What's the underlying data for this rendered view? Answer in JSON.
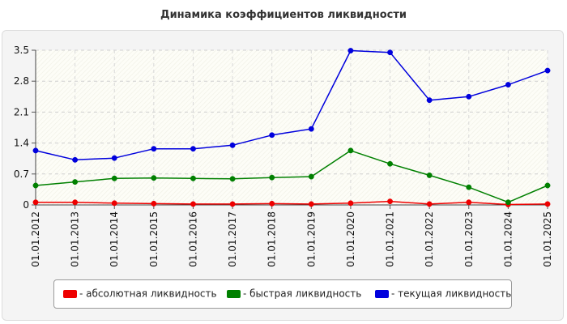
{
  "chart_data": {
    "type": "line",
    "title": "Динамика коэффициентов ликвидности",
    "xlabel": "",
    "ylabel": "",
    "categories": [
      "01.01.2012",
      "01.01.2013",
      "01.01.2014",
      "01.01.2015",
      "01.01.2016",
      "01.01.2017",
      "01.01.2018",
      "01.01.2019",
      "01.01.2020",
      "01.01.2021",
      "01.01.2022",
      "01.01.2023",
      "01.01.2024",
      "01.01.2025"
    ],
    "ylim": [
      0,
      3.5
    ],
    "yticks": [
      "0",
      "0.7",
      "1.4",
      "2.1",
      "2.8",
      "3.5"
    ],
    "grid": true,
    "legend_position": "bottom",
    "series": [
      {
        "name": "- абсолютная ликвидность",
        "color": "#ee0000",
        "values": [
          0.06,
          0.06,
          0.04,
          0.03,
          0.02,
          0.02,
          0.03,
          0.02,
          0.04,
          0.08,
          0.02,
          0.06,
          0.01,
          0.02
        ]
      },
      {
        "name": "- быстрая ликвидность",
        "color": "#008000",
        "values": [
          0.44,
          0.52,
          0.6,
          0.61,
          0.6,
          0.59,
          0.62,
          0.64,
          1.23,
          0.93,
          0.67,
          0.4,
          0.06,
          0.44
        ]
      },
      {
        "name": "- текущая ликвидность",
        "color": "#0000dd",
        "values": [
          1.23,
          1.02,
          1.06,
          1.27,
          1.27,
          1.35,
          1.58,
          1.72,
          3.49,
          3.45,
          2.37,
          2.45,
          2.72,
          3.04
        ]
      }
    ]
  }
}
